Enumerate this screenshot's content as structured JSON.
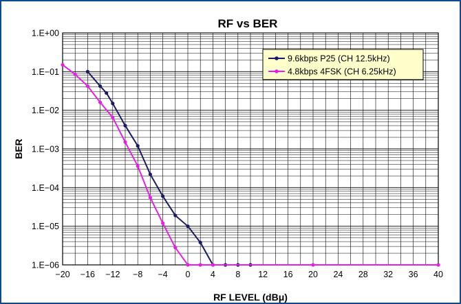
{
  "chart_data": {
    "type": "line",
    "title": "RF vs BER",
    "xlabel": "RF LEVEL (dBμ)",
    "ylabel": "BER",
    "x_scale": "linear",
    "y_scale": "log",
    "xlim": [
      -20,
      40
    ],
    "ylim": [
      1e-06,
      1
    ],
    "x_ticks": [
      -20,
      -16,
      -12,
      -8,
      -4,
      0,
      4,
      8,
      12,
      16,
      20,
      24,
      28,
      32,
      36,
      40
    ],
    "x_tick_labels": [
      "−20",
      "−16",
      "−12",
      "−8",
      "−4",
      "0",
      "4",
      "8",
      "12",
      "16",
      "20",
      "24",
      "28",
      "32",
      "36",
      "40"
    ],
    "y_ticks": [
      1,
      0.1,
      0.01,
      0.001,
      0.0001,
      1e-05,
      1e-06
    ],
    "y_tick_labels": [
      "1.E+00",
      "1.E−01",
      "1.E−02",
      "1.E−03",
      "1.E−04",
      "1.E−05",
      "1.E−06"
    ],
    "grid": true,
    "legend_position": "top-right",
    "plot_background": "#ffffff",
    "legend_background": "#ffffcc",
    "series": [
      {
        "name": "9.6kbps P25 (CH 12.5kHz)",
        "color": "#1a1a66",
        "x": [
          -16,
          -14,
          -13,
          -12,
          -10,
          -8,
          -6,
          -4,
          -2,
          0,
          2,
          4,
          6,
          8,
          10
        ],
        "y": [
          0.1,
          0.042,
          0.028,
          0.015,
          0.004,
          0.0012,
          0.00022,
          6e-05,
          1.9e-05,
          1e-05,
          3.8e-06,
          1e-06,
          1e-06,
          1e-06,
          1e-06
        ]
      },
      {
        "name": "4.8kbps 4FSK (CH 6.25kHz)",
        "color": "#e81ee8",
        "x": [
          -20,
          -18,
          -16,
          -14,
          -12,
          -10,
          -8,
          -6,
          -4,
          -2,
          0,
          2,
          4,
          20,
          40
        ],
        "y": [
          0.15,
          0.085,
          0.042,
          0.016,
          0.0065,
          0.0015,
          0.00036,
          5.5e-05,
          1.2e-05,
          2.8e-06,
          1e-06,
          1e-06,
          1e-06,
          1e-06,
          1e-06
        ]
      }
    ]
  }
}
